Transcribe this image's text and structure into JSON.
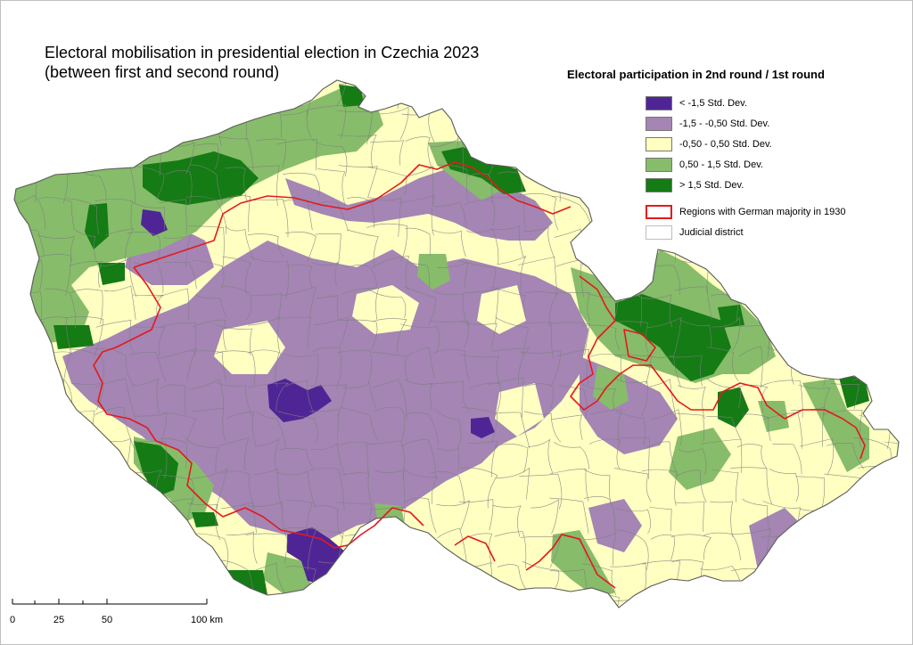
{
  "title": {
    "line1": "Electoral mobilisation in presidential election in Czechia 2023",
    "line2": "(between first and second round)"
  },
  "legend": {
    "title": "Electoral participation in 2nd round / 1st round",
    "classes": [
      {
        "label": "< -1,5 Std. Dev.",
        "color": "#4f2596"
      },
      {
        "label": "-1,5 - -0,50 Std. Dev.",
        "color": "#a485b4"
      },
      {
        "label": "-0,50 - 0,50 Std. Dev.",
        "color": "#ffffc2"
      },
      {
        "label": "0,50 - 1,5 Std. Dev.",
        "color": "#87bc6a"
      },
      {
        "label": "> 1,5 Std. Dev.",
        "color": "#157b15"
      }
    ],
    "german_regions": {
      "label": "Regions with German majority in 1930",
      "color": "#e31a1c"
    },
    "judicial_district": {
      "label": "Judicial district",
      "color": "#ffffff"
    }
  },
  "scale": {
    "ticks": [
      "0",
      "25",
      "50",
      "100 km"
    ]
  },
  "colors": {
    "district_border": "#808080",
    "country_border": "#5a5a5a"
  }
}
